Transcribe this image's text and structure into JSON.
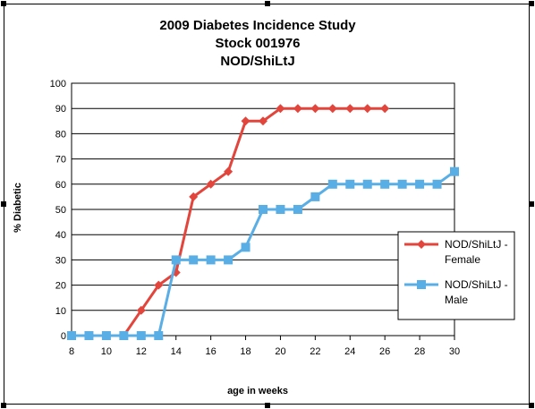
{
  "chart_data": {
    "type": "line",
    "title": [
      "2009 Diabetes Incidence Study",
      "Stock 001976",
      "NOD/ShiLtJ"
    ],
    "xlabel": "age in weeks",
    "ylabel": "% Diabetic",
    "xlim": [
      8,
      30
    ],
    "ylim": [
      0,
      100
    ],
    "x_ticks": [
      8,
      10,
      12,
      14,
      16,
      18,
      20,
      22,
      24,
      26,
      28,
      30
    ],
    "y_ticks": [
      0,
      10,
      20,
      30,
      40,
      50,
      60,
      70,
      80,
      90,
      100
    ],
    "grid": "horizontal",
    "legend_position": "right",
    "series": [
      {
        "name": [
          "NOD/ShiLtJ -",
          "Female"
        ],
        "color": "#e2453c",
        "marker": "diamond",
        "x": [
          8,
          9,
          10,
          11,
          12,
          13,
          14,
          15,
          16,
          17,
          18,
          19,
          20,
          21,
          22,
          23,
          24,
          25,
          26
        ],
        "y": [
          0,
          0,
          0,
          0,
          10,
          20,
          25,
          55,
          60,
          65,
          85,
          85,
          90,
          90,
          90,
          90,
          90,
          90,
          90
        ]
      },
      {
        "name": [
          "NOD/ShiLtJ -",
          "Male"
        ],
        "color": "#5aaee6",
        "marker": "square",
        "x": [
          8,
          9,
          10,
          11,
          12,
          13,
          14,
          15,
          16,
          17,
          18,
          19,
          20,
          21,
          22,
          23,
          24,
          25,
          26,
          27,
          28,
          29,
          30
        ],
        "y": [
          0,
          0,
          0,
          0,
          0,
          0,
          30,
          30,
          30,
          30,
          35,
          50,
          50,
          50,
          55,
          60,
          60,
          60,
          60,
          60,
          60,
          60,
          65
        ]
      }
    ]
  }
}
